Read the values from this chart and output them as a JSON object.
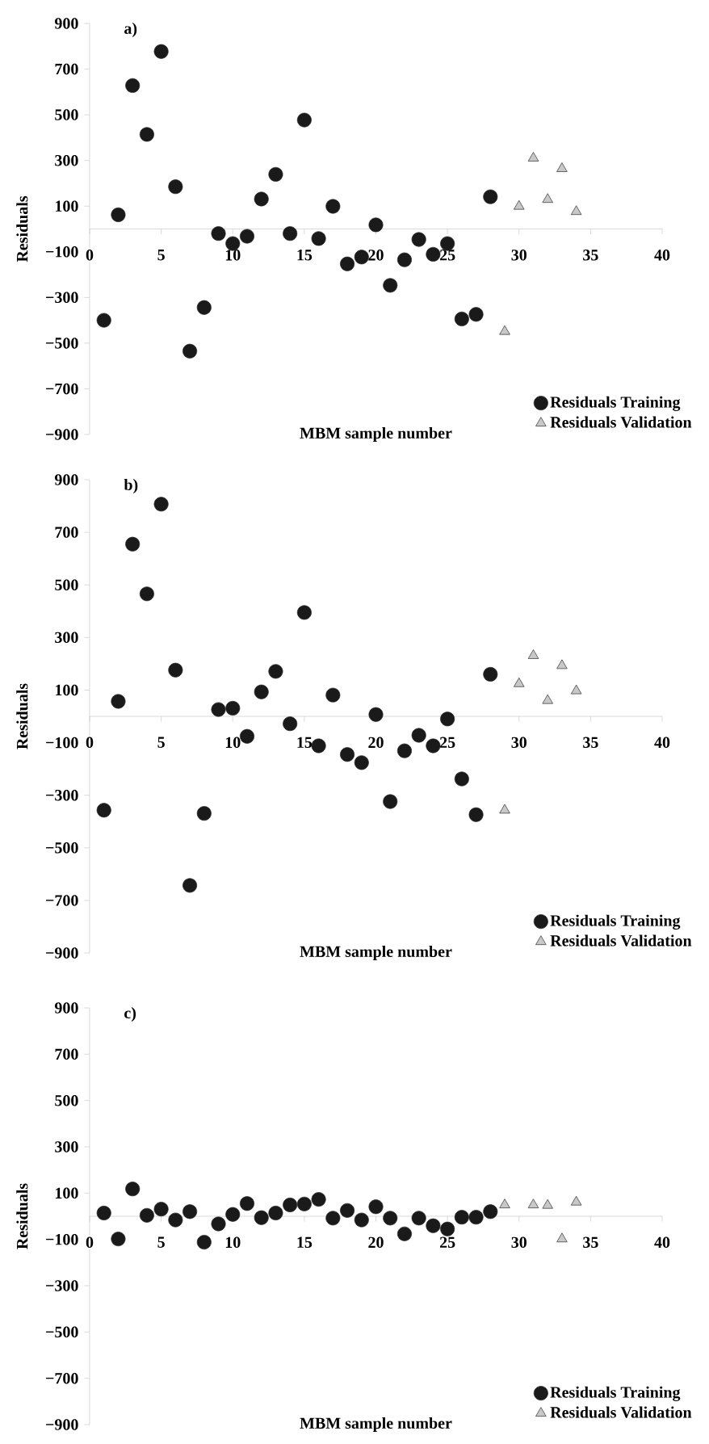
{
  "chart_data": [
    {
      "type": "scatter",
      "title": "a)",
      "xlabel": "MBM sample number",
      "ylabel": "Residuals",
      "xlim": [
        0,
        40
      ],
      "xticks": [
        0,
        5,
        10,
        15,
        20,
        25,
        30,
        35,
        40
      ],
      "ylim": [
        -900,
        900
      ],
      "yticks": [
        {
          "value": -900,
          "label": "−900"
        },
        {
          "value": -700,
          "label": "−700"
        },
        {
          "value": -500,
          "label": "−500"
        },
        {
          "value": -300,
          "label": "−300"
        },
        {
          "value": -100,
          "label": "−100"
        },
        100,
        300,
        500,
        700,
        900
      ],
      "legend": "bottom right",
      "series": [
        {
          "name": "Residuals Training",
          "color": "#1a1a1a",
          "marker": "circle",
          "x": [
            1,
            2,
            3,
            4,
            5,
            6,
            7,
            8,
            9,
            10,
            11,
            12,
            13,
            14,
            15,
            16,
            17,
            18,
            19,
            20,
            21,
            22,
            23,
            24,
            25,
            26,
            27,
            28
          ],
          "values": [
            -400,
            62,
            628,
            414,
            777,
            185,
            -535,
            -344,
            -20,
            -64,
            -32,
            131,
            239,
            -20,
            477,
            -42,
            99,
            -153,
            -123,
            18,
            -247,
            -135,
            -46,
            -111,
            -64,
            -394,
            -374,
            141
          ]
        },
        {
          "name": "Residuals Validation",
          "color": "#c8c8c8",
          "marker": "triangle",
          "x": [
            29,
            30,
            31,
            32,
            33,
            34
          ],
          "values": [
            -449,
            99,
            310,
            129,
            264,
            76
          ]
        }
      ]
    },
    {
      "type": "scatter",
      "title": "b)",
      "xlabel": "MBM sample number",
      "ylabel": "Residuals",
      "xlim": [
        0,
        40
      ],
      "xticks": [
        0,
        5,
        10,
        15,
        20,
        25,
        30,
        35,
        40
      ],
      "ylim": [
        -900,
        900
      ],
      "yticks": [
        {
          "value": -900,
          "label": "−900"
        },
        {
          "value": -700,
          "label": "−700"
        },
        {
          "value": -500,
          "label": "−500"
        },
        {
          "value": -300,
          "label": "−300"
        },
        {
          "value": -100,
          "label": "−100"
        },
        100,
        300,
        500,
        700,
        900
      ],
      "legend": "bottom right",
      "series": [
        {
          "name": "Residuals Training",
          "color": "#1a1a1a",
          "marker": "circle",
          "x": [
            1,
            2,
            3,
            4,
            5,
            6,
            7,
            8,
            9,
            10,
            11,
            12,
            13,
            14,
            15,
            16,
            17,
            18,
            19,
            20,
            21,
            22,
            23,
            24,
            25,
            26,
            27,
            28
          ],
          "values": [
            -357,
            57,
            655,
            466,
            807,
            176,
            -643,
            -369,
            26,
            31,
            -76,
            93,
            171,
            -28,
            395,
            -112,
            81,
            -145,
            -176,
            7,
            -324,
            -131,
            -72,
            -112,
            -10,
            -238,
            -374,
            160
          ]
        },
        {
          "name": "Residuals Validation",
          "color": "#c8c8c8",
          "marker": "triangle",
          "x": [
            29,
            30,
            31,
            32,
            33,
            34
          ],
          "values": [
            -357,
            124,
            231,
            60,
            193,
            97
          ]
        }
      ]
    },
    {
      "type": "scatter",
      "title": "c)",
      "xlabel": "MBM sample number",
      "ylabel": "Residuals",
      "xlim": [
        0,
        40
      ],
      "xticks": [
        0,
        5,
        10,
        15,
        20,
        25,
        30,
        35,
        40
      ],
      "ylim": [
        -900,
        900
      ],
      "yticks": [
        {
          "value": -900,
          "label": "−900"
        },
        {
          "value": -700,
          "label": "−700"
        },
        {
          "value": -500,
          "label": "−500"
        },
        {
          "value": -300,
          "label": "−300"
        },
        {
          "value": -100,
          "label": "−100"
        },
        100,
        300,
        500,
        700,
        900
      ],
      "legend": "bottom right",
      "series": [
        {
          "name": "Residuals Training",
          "color": "#1a1a1a",
          "marker": "circle",
          "x": [
            1,
            2,
            3,
            4,
            5,
            6,
            7,
            8,
            9,
            10,
            11,
            12,
            13,
            14,
            15,
            16,
            17,
            18,
            19,
            20,
            21,
            22,
            23,
            24,
            25,
            26,
            27,
            28
          ],
          "values": [
            14,
            -98,
            118,
            4,
            31,
            -16,
            20,
            -112,
            -33,
            8,
            55,
            -6,
            14,
            49,
            53,
            73,
            -8,
            25,
            -16,
            41,
            -8,
            -76,
            -8,
            -41,
            -55,
            -4,
            -4,
            20
          ]
        },
        {
          "name": "Residuals Validation",
          "color": "#c8c8c8",
          "marker": "triangle",
          "x": [
            29,
            31,
            32,
            33,
            34
          ],
          "values": [
            49,
            49,
            47,
            -98,
            61
          ]
        }
      ]
    }
  ]
}
